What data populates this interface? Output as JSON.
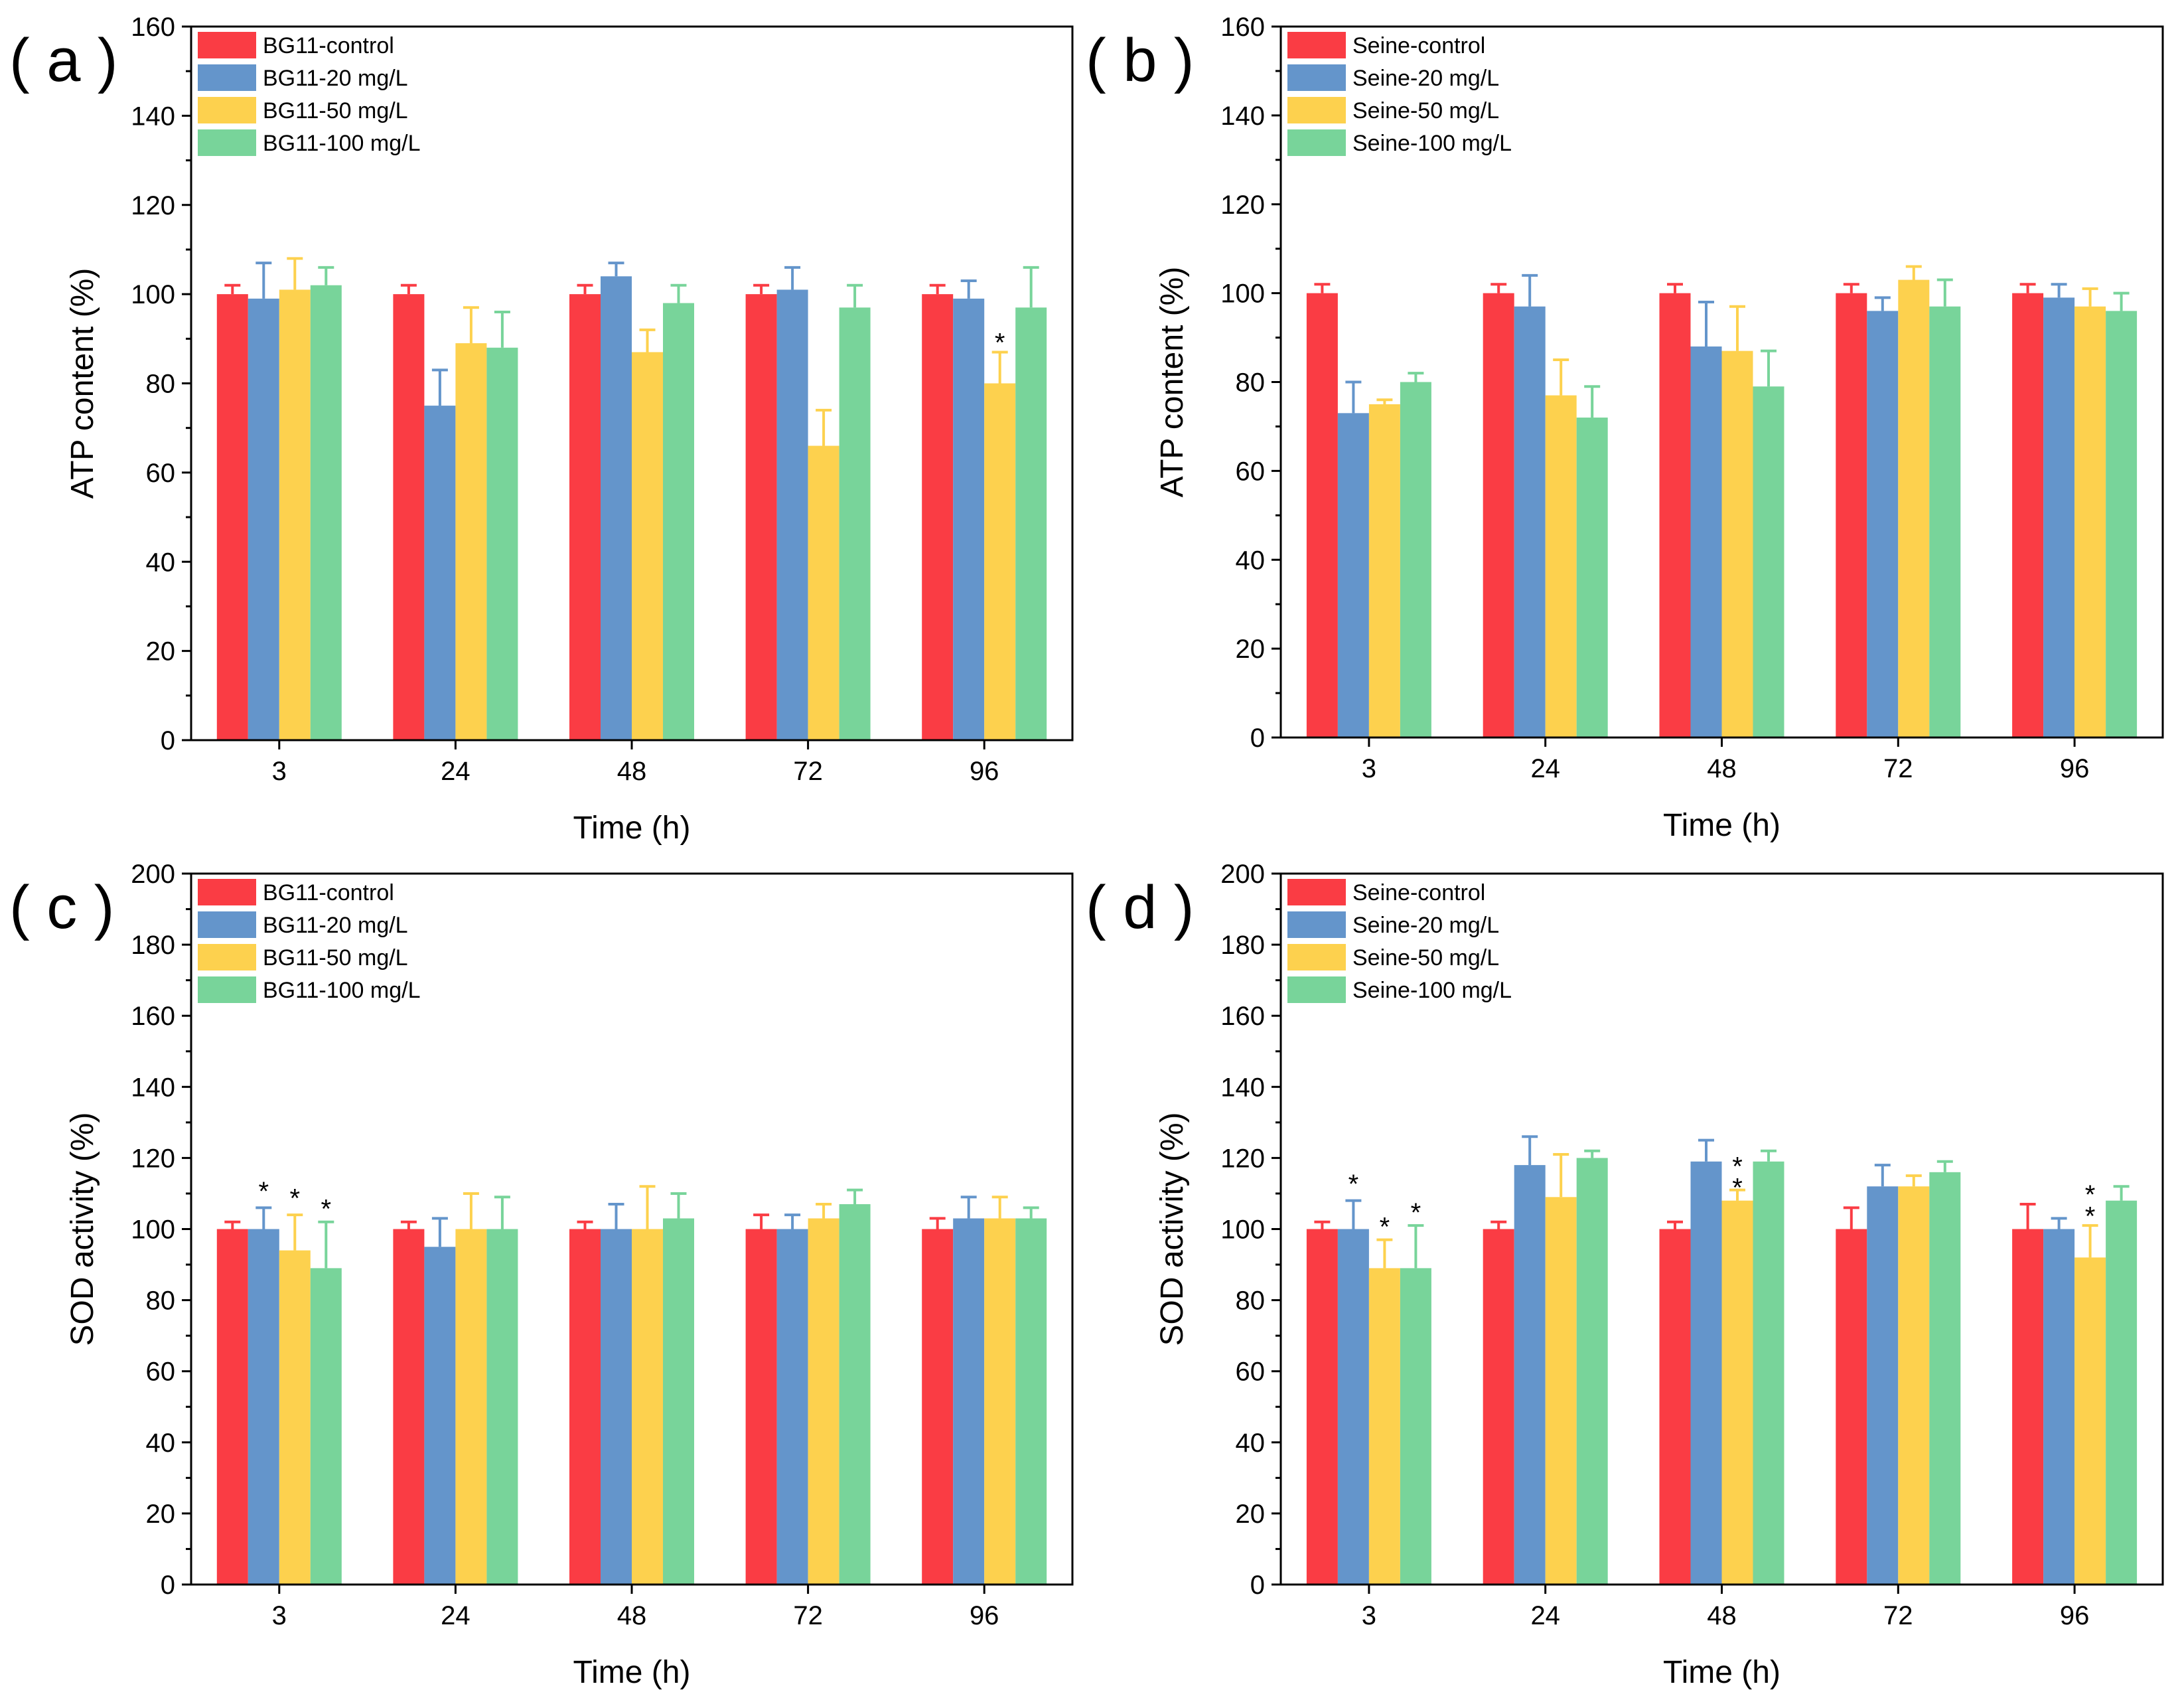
{
  "colors": {
    "control": "#fa3c44",
    "c20": "#6495cb",
    "c50": "#fdd14e",
    "c100": "#78d49a",
    "axis": "#000000"
  },
  "chart_data": [
    {
      "id": "a",
      "panel_label": "( a )",
      "type": "bar",
      "xlabel": "Time (h)",
      "ylabel": "ATP content (%)",
      "ylim": [
        0,
        160
      ],
      "yticks": [
        0,
        20,
        40,
        60,
        80,
        100,
        120,
        140,
        160
      ],
      "categories": [
        "3",
        "24",
        "48",
        "72",
        "96"
      ],
      "legend_position": "top-left",
      "series": [
        {
          "name": "BG11-control",
          "color_key": "control",
          "values": [
            100,
            100,
            100,
            100,
            100
          ],
          "errors": [
            2,
            2,
            2,
            2,
            2
          ]
        },
        {
          "name": "BG11-20 mg/L",
          "color_key": "c20",
          "values": [
            99,
            75,
            104,
            101,
            99
          ],
          "errors": [
            8,
            8,
            3,
            5,
            4
          ]
        },
        {
          "name": "BG11-50 mg/L",
          "color_key": "c50",
          "values": [
            101,
            89,
            87,
            66,
            80
          ],
          "errors": [
            7,
            8,
            5,
            8,
            7
          ]
        },
        {
          "name": "BG11-100 mg/L",
          "color_key": "c100",
          "values": [
            102,
            88,
            98,
            97,
            97
          ],
          "errors": [
            4,
            8,
            4,
            5,
            9
          ]
        }
      ],
      "annotations": [
        {
          "text": "*",
          "category": 4,
          "series": 2,
          "value": 91
        }
      ]
    },
    {
      "id": "b",
      "panel_label": "( b )",
      "type": "bar",
      "xlabel": "Time (h)",
      "ylabel": "ATP content (%)",
      "ylim": [
        0,
        160
      ],
      "yticks": [
        0,
        20,
        40,
        60,
        80,
        100,
        120,
        140,
        160
      ],
      "categories": [
        "3",
        "24",
        "48",
        "72",
        "96"
      ],
      "legend_position": "top-left",
      "series": [
        {
          "name": "Seine-control",
          "color_key": "control",
          "values": [
            100,
            100,
            100,
            100,
            100
          ],
          "errors": [
            2,
            2,
            2,
            2,
            2
          ]
        },
        {
          "name": "Seine-20 mg/L",
          "color_key": "c20",
          "values": [
            73,
            97,
            88,
            96,
            99
          ],
          "errors": [
            7,
            7,
            10,
            3,
            3
          ]
        },
        {
          "name": "Seine-50 mg/L",
          "color_key": "c50",
          "values": [
            75,
            77,
            87,
            103,
            97
          ],
          "errors": [
            1,
            8,
            10,
            3,
            4
          ]
        },
        {
          "name": "Seine-100 mg/L",
          "color_key": "c100",
          "values": [
            80,
            72,
            79,
            97,
            96
          ],
          "errors": [
            2,
            7,
            8,
            6,
            4
          ]
        }
      ],
      "annotations": []
    },
    {
      "id": "c",
      "panel_label": "( c )",
      "type": "bar",
      "xlabel": "Time (h)",
      "ylabel": "SOD activity (%)",
      "ylim": [
        0,
        200
      ],
      "yticks": [
        0,
        20,
        40,
        60,
        80,
        100,
        120,
        140,
        160,
        180,
        200
      ],
      "categories": [
        "3",
        "24",
        "48",
        "72",
        "96"
      ],
      "legend_position": "top-left",
      "series": [
        {
          "name": "BG11-control",
          "color_key": "control",
          "values": [
            100,
            100,
            100,
            100,
            100
          ],
          "errors": [
            2,
            2,
            2,
            4,
            3
          ]
        },
        {
          "name": "BG11-20 mg/L",
          "color_key": "c20",
          "values": [
            100,
            95,
            100,
            100,
            103
          ],
          "errors": [
            6,
            8,
            7,
            4,
            6
          ]
        },
        {
          "name": "BG11-50 mg/L",
          "color_key": "c50",
          "values": [
            94,
            100,
            100,
            103,
            103
          ],
          "errors": [
            10,
            10,
            12,
            4,
            6
          ]
        },
        {
          "name": "BG11-100 mg/L",
          "color_key": "c100",
          "values": [
            89,
            100,
            103,
            107,
            103
          ],
          "errors": [
            13,
            9,
            7,
            4,
            3
          ]
        }
      ],
      "annotations": [
        {
          "text": "*",
          "category": 0,
          "series": 1,
          "value": 113
        },
        {
          "text": "*",
          "category": 0,
          "series": 2,
          "value": 111
        },
        {
          "text": "*",
          "category": 0,
          "series": 3,
          "value": 108
        }
      ]
    },
    {
      "id": "d",
      "panel_label": "( d )",
      "type": "bar",
      "xlabel": "Time (h)",
      "ylabel": "SOD activity (%)",
      "ylim": [
        0,
        200
      ],
      "yticks": [
        0,
        20,
        40,
        60,
        80,
        100,
        120,
        140,
        160,
        180,
        200
      ],
      "categories": [
        "3",
        "24",
        "48",
        "72",
        "96"
      ],
      "legend_position": "top-left",
      "series": [
        {
          "name": "Seine-control",
          "color_key": "control",
          "values": [
            100,
            100,
            100,
            100,
            100
          ],
          "errors": [
            2,
            2,
            2,
            6,
            7
          ]
        },
        {
          "name": "Seine-20 mg/L",
          "color_key": "c20",
          "values": [
            100,
            118,
            119,
            112,
            100
          ],
          "errors": [
            8,
            8,
            6,
            6,
            3
          ]
        },
        {
          "name": "Seine-50 mg/L",
          "color_key": "c50",
          "values": [
            89,
            109,
            108,
            112,
            92
          ],
          "errors": [
            8,
            12,
            3,
            3,
            9
          ]
        },
        {
          "name": "Seine-100 mg/L",
          "color_key": "c100",
          "values": [
            89,
            120,
            119,
            116,
            108
          ],
          "errors": [
            12,
            2,
            3,
            3,
            4
          ]
        }
      ],
      "annotations": [
        {
          "text": "*",
          "category": 0,
          "series": 1,
          "value": 115
        },
        {
          "text": "*",
          "category": 0,
          "series": 2,
          "value": 103
        },
        {
          "text": "*",
          "category": 0,
          "series": 3,
          "value": 107
        },
        {
          "text": "*",
          "category": 2,
          "series": 2,
          "value": 120
        },
        {
          "text": "*",
          "category": 2,
          "series": 2,
          "value": 114
        },
        {
          "text": "*",
          "category": 4,
          "series": 2,
          "value": 112
        },
        {
          "text": "*",
          "category": 4,
          "series": 2,
          "value": 106
        }
      ]
    }
  ]
}
